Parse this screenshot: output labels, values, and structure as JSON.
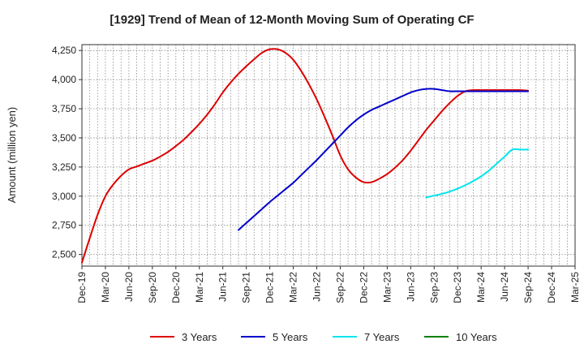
{
  "chart_data": {
    "type": "line",
    "title": "[1929]  Trend of Mean of 12-Month Moving Sum of Operating CF",
    "xlabel": "",
    "ylabel": "Amount (million yen)",
    "ylim": [
      2400,
      4300
    ],
    "yticks": [
      2500,
      2750,
      3000,
      3250,
      3500,
      3750,
      4000,
      4250
    ],
    "ytick_labels": [
      "2,500",
      "2,750",
      "3,000",
      "3,250",
      "3,500",
      "3,750",
      "4,000",
      "4,250"
    ],
    "x_month_range": [
      0,
      63
    ],
    "xticks": [
      0,
      3,
      6,
      9,
      12,
      15,
      18,
      21,
      24,
      27,
      30,
      33,
      36,
      39,
      42,
      45,
      48,
      51,
      54,
      57,
      60,
      63
    ],
    "xtick_labels": [
      "Dec-19",
      "Mar-20",
      "Jun-20",
      "Sep-20",
      "Dec-20",
      "Mar-21",
      "Jun-21",
      "Sep-21",
      "Dec-21",
      "Mar-22",
      "Jun-22",
      "Sep-22",
      "Dec-22",
      "Mar-23",
      "Jun-23",
      "Sep-23",
      "Dec-23",
      "Mar-24",
      "Jun-24",
      "Sep-24",
      "Dec-24",
      "Mar-25"
    ],
    "grid": true,
    "legend_position": "bottom",
    "series": [
      {
        "name": "3 Years",
        "color": "#dd0000",
        "x": [
          0,
          1,
          2,
          3,
          4,
          5,
          6,
          7,
          8,
          9,
          10,
          11,
          12,
          13,
          14,
          15,
          16,
          17,
          18,
          19,
          20,
          21,
          22,
          23,
          24,
          25,
          26,
          27,
          28,
          29,
          30,
          31,
          32,
          33,
          34,
          35,
          36,
          37,
          38,
          39,
          40,
          41,
          42,
          43,
          44,
          45,
          46,
          47,
          48,
          49,
          50,
          51,
          52,
          53,
          54,
          55,
          56,
          57
        ],
        "values": [
          2430,
          2640,
          2840,
          3000,
          3100,
          3175,
          3230,
          3255,
          3280,
          3305,
          3340,
          3380,
          3430,
          3485,
          3550,
          3620,
          3700,
          3790,
          3890,
          3975,
          4050,
          4115,
          4175,
          4230,
          4260,
          4260,
          4230,
          4170,
          4075,
          3960,
          3830,
          3680,
          3520,
          3350,
          3230,
          3160,
          3120,
          3120,
          3150,
          3190,
          3245,
          3310,
          3390,
          3480,
          3570,
          3650,
          3730,
          3800,
          3860,
          3900,
          3910,
          3910,
          3910,
          3910,
          3910,
          3910,
          3910,
          3905
        ],
        "visible_x_range": [
          0,
          57
        ]
      },
      {
        "name": "5 Years",
        "color": "#0000cc",
        "x": [
          20,
          21,
          22,
          23,
          24,
          25,
          26,
          27,
          28,
          29,
          30,
          31,
          32,
          33,
          34,
          35,
          36,
          37,
          38,
          39,
          40,
          41,
          42,
          43,
          44,
          45,
          46,
          47,
          48,
          49,
          50,
          51,
          52,
          53,
          54,
          55,
          56,
          57
        ],
        "values": [
          2710,
          2770,
          2830,
          2890,
          2950,
          3005,
          3060,
          3115,
          3180,
          3245,
          3310,
          3380,
          3450,
          3520,
          3590,
          3650,
          3700,
          3740,
          3770,
          3800,
          3830,
          3860,
          3890,
          3910,
          3920,
          3920,
          3910,
          3900,
          3900,
          3900,
          3900,
          3900,
          3900,
          3900,
          3900,
          3900,
          3900,
          3900
        ],
        "visible_x_range": [
          20,
          57
        ]
      },
      {
        "name": "7 Years",
        "color": "#00e5ee",
        "x": [
          44,
          45,
          46,
          47,
          48,
          49,
          50,
          51,
          52,
          53,
          54,
          55,
          56,
          57
        ],
        "values": [
          2990,
          3005,
          3020,
          3040,
          3065,
          3095,
          3130,
          3170,
          3220,
          3280,
          3340,
          3400,
          3400,
          3400
        ],
        "visible_x_range": [
          44,
          57
        ]
      },
      {
        "name": "10 Years",
        "color": "#008000",
        "x": [],
        "values": []
      }
    ]
  }
}
